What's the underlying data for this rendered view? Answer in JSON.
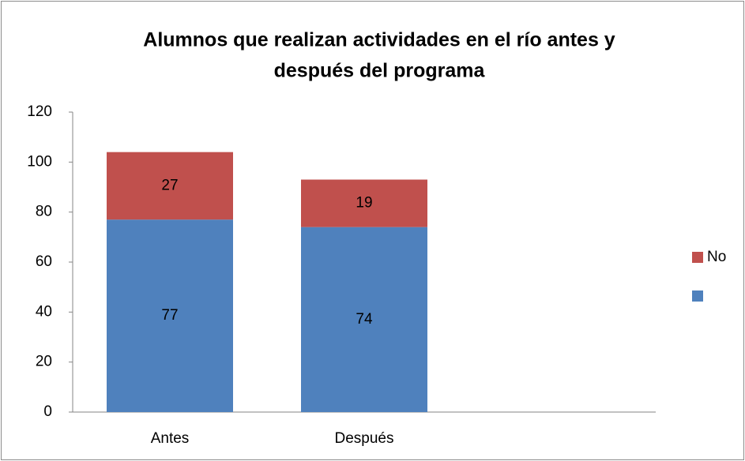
{
  "chart_data": {
    "type": "stacked_bar",
    "title": [
      "Alumnos que realizan actividades en el río antes y",
      "después del programa"
    ],
    "categories": [
      "Antes",
      "Después",
      null
    ],
    "series": [
      {
        "color": "#4f81bd",
        "values": [
          77,
          74,
          null
        ]
      },
      {
        "name": "No",
        "color": "#c0504d",
        "values": [
          27,
          19,
          null
        ]
      }
    ],
    "ylim": [
      0,
      120
    ],
    "yticks": [
      0,
      20,
      40,
      60,
      80,
      100,
      120
    ],
    "grid": false,
    "legend": "right"
  }
}
